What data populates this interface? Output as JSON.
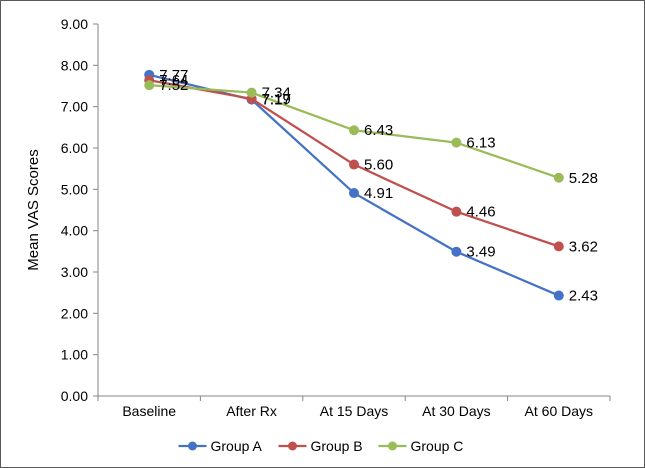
{
  "chart_data": {
    "type": "line",
    "title": "",
    "xlabel": "",
    "ylabel": "Mean VAS Scores",
    "ylim": [
      0,
      9
    ],
    "ytick_step": 1,
    "ytick_format": "0.00",
    "grid": false,
    "legend_position": "bottom",
    "categories": [
      "Baseline",
      "After Rx",
      "At 15 Days",
      "At 30 Days",
      "At 60 Days"
    ],
    "series": [
      {
        "name": "Group A",
        "color": "#4472C4",
        "values": [
          7.77,
          7.17,
          4.91,
          3.49,
          2.43
        ],
        "labels": [
          "7.77",
          "7.17",
          "4.91",
          "3.49",
          "2.43"
        ]
      },
      {
        "name": "Group B",
        "color": "#C0504D",
        "values": [
          7.64,
          7.19,
          5.6,
          4.46,
          3.62
        ],
        "labels": [
          "7.64",
          "7.19",
          "5.60",
          "4.46",
          "3.62"
        ]
      },
      {
        "name": "Group C",
        "color": "#9BBB59",
        "values": [
          7.52,
          7.34,
          6.43,
          6.13,
          5.28
        ],
        "labels": [
          "7.52",
          "7.34",
          "6.43",
          "6.13",
          "5.28"
        ]
      }
    ]
  }
}
